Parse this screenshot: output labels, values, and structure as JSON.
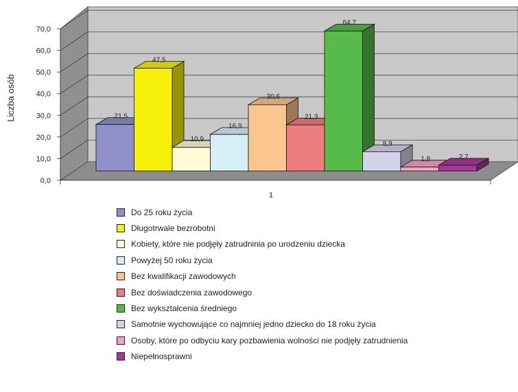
{
  "chart_data": {
    "type": "bar",
    "title": "",
    "ylabel": "Liczba osób",
    "xlabel": "",
    "categories": [
      "1"
    ],
    "ylim": [
      0,
      70
    ],
    "y_ticks": [
      "0,0",
      "10,0",
      "20,0",
      "30,0",
      "40,0",
      "50,0",
      "60,0",
      "70,0"
    ],
    "three_d": true,
    "grid": true,
    "legend_position": "bottom",
    "series": [
      {
        "name": "Do 25 roku życia",
        "values": [
          21.5
        ],
        "label": "21,5",
        "color": "#8F8FC9"
      },
      {
        "name": "Długotrwale bezrobotni",
        "values": [
          47.5
        ],
        "label": "47,5",
        "color": "#F5EF0A"
      },
      {
        "name": "Kobiety, które nie podjęły zatrudninia po urodzeniu dziecka",
        "values": [
          10.9
        ],
        "label": "10,9",
        "color": "#FDFAD6"
      },
      {
        "name": "Powyżej 50 roku życia",
        "values": [
          16.9
        ],
        "label": "16,9",
        "color": "#D6EEF5"
      },
      {
        "name": "Bez kwalifikacji zawodowych",
        "values": [
          30.6
        ],
        "label": "30,6",
        "color": "#FBC58F"
      },
      {
        "name": "Bez doświadczenia zawodowego",
        "values": [
          21.3
        ],
        "label": "21,3",
        "color": "#EE7E7E"
      },
      {
        "name": "Bez wykształcenia średniego",
        "values": [
          64.7
        ],
        "label": "64,7",
        "color": "#57BB4A"
      },
      {
        "name": "Samotnie wychowujące co najmniej jedno dziecko do 18 roku życia",
        "values": [
          8.9
        ],
        "label": "8,9",
        "color": "#D3D3EB"
      },
      {
        "name": "Osoby, które po odbyciu kary pozbawienia wolności nie podjęły zatrudnienia",
        "values": [
          1.8
        ],
        "label": "1,8",
        "color": "#F4A3C6"
      },
      {
        "name": "Niepełnosprawni",
        "values": [
          2.7
        ],
        "label": "2,7",
        "color": "#A8389A"
      }
    ]
  }
}
